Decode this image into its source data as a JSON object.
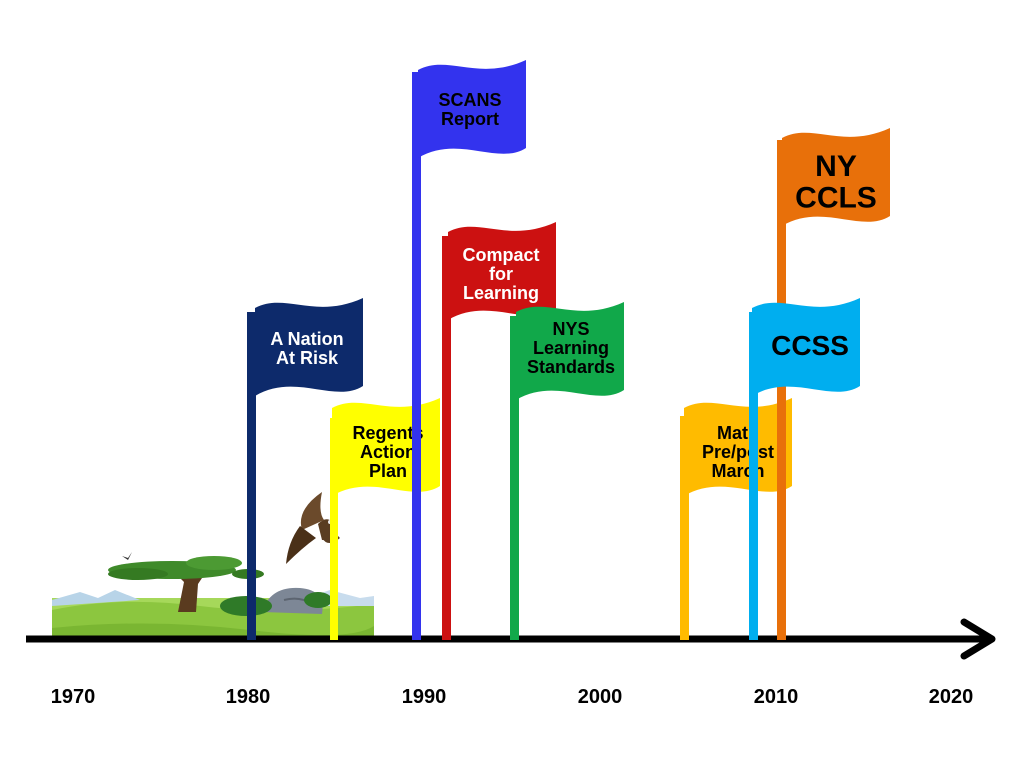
{
  "timeline": {
    "years": [
      "1970",
      "1980",
      "1990",
      "2000",
      "2010",
      "2020"
    ]
  },
  "flags": [
    {
      "id": "nation-at-risk",
      "year": 1983,
      "lines": [
        "A Nation",
        "At Risk"
      ],
      "color": "#0d2a6b",
      "text_color": "#ffffff"
    },
    {
      "id": "regents-action-plan",
      "year": 1984,
      "lines": [
        "Regents",
        "Action",
        "Plan"
      ],
      "color": "#ffff00",
      "text_color": "#000000"
    },
    {
      "id": "scans-report",
      "year": 1991,
      "lines": [
        "SCANS",
        "Report"
      ],
      "color": "#3333ee",
      "text_color": "#000000"
    },
    {
      "id": "compact-for-learning",
      "year": 1992,
      "lines": [
        "Compact",
        "for",
        "Learning"
      ],
      "color": "#cc1111",
      "text_color": "#ffffff"
    },
    {
      "id": "nys-learning-standards",
      "year": 1996,
      "lines": [
        "NYS",
        "Learning",
        "Standards"
      ],
      "color": "#11a84a",
      "text_color": "#000000"
    },
    {
      "id": "math-prepost-march",
      "year": 2006,
      "lines": [
        "Math",
        "Pre/post",
        "March"
      ],
      "color": "#ffbb00",
      "text_color": "#000000"
    },
    {
      "id": "ccss",
      "year": 2010,
      "lines": [
        "CCSS"
      ],
      "color": "#00aeef",
      "text_color": "#000000"
    },
    {
      "id": "ny-ccls",
      "year": 2011,
      "lines": [
        "NY",
        "CCLS"
      ],
      "color": "#e8700a",
      "text_color": "#000000"
    }
  ]
}
